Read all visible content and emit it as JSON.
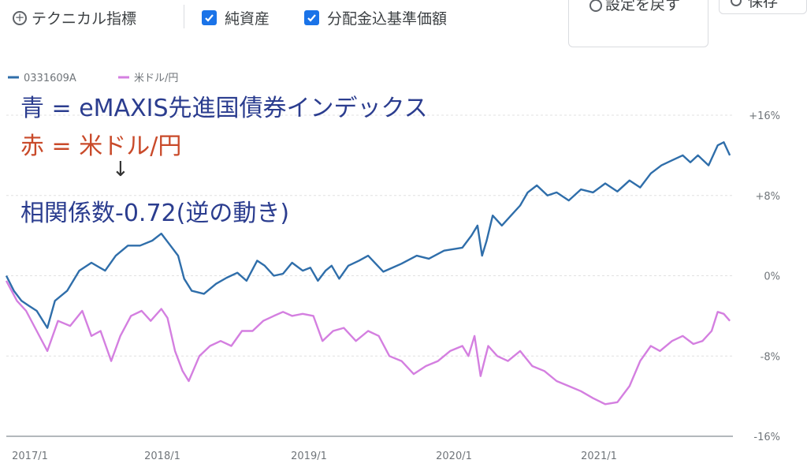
{
  "toolbar": {
    "technical_label": "テクニカル指標",
    "checkbox1_label": "純資産",
    "checkbox2_label": "分配金込基準価額",
    "reset_button_label": "設定を戻す",
    "save_button_label": "保存"
  },
  "annotations": {
    "line1": "青 = eMAXIS先進国債券インデックス",
    "line2": "赤 = 米ドル/円",
    "arrow": "↓",
    "line3": "相関係数-0.72(逆の動き)"
  },
  "colors": {
    "series1": "#2f6eaa",
    "series2": "#d47fe0",
    "annot_blue": "#2b3d8f",
    "annot_red": "#c94a2a",
    "checkbox": "#1a73e8"
  },
  "chart_data": {
    "type": "line",
    "x_labels": [
      "2017/1",
      "2018/1",
      "2019/1",
      "2020/1",
      "2021/1"
    ],
    "y_ticks": [
      "+16%",
      "+8%",
      "0%",
      "-8%",
      "-16%"
    ],
    "ylim": [
      -16,
      16
    ],
    "grid": true,
    "legend_placement": "top-left",
    "series": [
      {
        "name": "0331609A",
        "points": [
          [
            2017.0,
            0.0
          ],
          [
            2017.05,
            -1.5
          ],
          [
            2017.1,
            -2.5
          ],
          [
            2017.15,
            -3.0
          ],
          [
            2017.2,
            -3.5
          ],
          [
            2017.27,
            -5.2
          ],
          [
            2017.32,
            -2.5
          ],
          [
            2017.4,
            -1.5
          ],
          [
            2017.48,
            0.5
          ],
          [
            2017.56,
            1.3
          ],
          [
            2017.65,
            0.5
          ],
          [
            2017.72,
            2.0
          ],
          [
            2017.8,
            3.0
          ],
          [
            2017.88,
            3.0
          ],
          [
            2017.96,
            3.5
          ],
          [
            2018.02,
            4.2
          ],
          [
            2018.08,
            3.0
          ],
          [
            2018.13,
            2.0
          ],
          [
            2018.17,
            -0.3
          ],
          [
            2018.22,
            -1.5
          ],
          [
            2018.3,
            -1.8
          ],
          [
            2018.38,
            -0.8
          ],
          [
            2018.45,
            -0.2
          ],
          [
            2018.52,
            0.3
          ],
          [
            2018.58,
            -0.5
          ],
          [
            2018.65,
            1.5
          ],
          [
            2018.7,
            1.0
          ],
          [
            2018.76,
            0.0
          ],
          [
            2018.82,
            0.2
          ],
          [
            2018.88,
            1.3
          ],
          [
            2018.95,
            0.5
          ],
          [
            2019.0,
            0.8
          ],
          [
            2019.05,
            -0.5
          ],
          [
            2019.1,
            0.5
          ],
          [
            2019.14,
            1.0
          ],
          [
            2019.19,
            -0.3
          ],
          [
            2019.25,
            1.0
          ],
          [
            2019.32,
            1.5
          ],
          [
            2019.38,
            2.0
          ],
          [
            2019.48,
            0.4
          ],
          [
            2019.6,
            1.2
          ],
          [
            2019.7,
            2.0
          ],
          [
            2019.78,
            1.7
          ],
          [
            2019.88,
            2.5
          ],
          [
            2020.0,
            2.8
          ],
          [
            2020.06,
            4.0
          ],
          [
            2020.1,
            5.0
          ],
          [
            2020.13,
            2.0
          ],
          [
            2020.16,
            3.5
          ],
          [
            2020.2,
            6.0
          ],
          [
            2020.26,
            5.0
          ],
          [
            2020.32,
            6.0
          ],
          [
            2020.38,
            7.0
          ],
          [
            2020.43,
            8.3
          ],
          [
            2020.49,
            9.0
          ],
          [
            2020.56,
            8.0
          ],
          [
            2020.62,
            8.3
          ],
          [
            2020.7,
            7.5
          ],
          [
            2020.78,
            8.6
          ],
          [
            2020.86,
            8.3
          ],
          [
            2020.94,
            9.2
          ],
          [
            2021.02,
            8.4
          ],
          [
            2021.1,
            9.5
          ],
          [
            2021.17,
            8.8
          ],
          [
            2021.24,
            10.2
          ],
          [
            2021.31,
            11.0
          ],
          [
            2021.38,
            11.5
          ],
          [
            2021.45,
            12.0
          ],
          [
            2021.5,
            11.3
          ],
          [
            2021.55,
            12.0
          ],
          [
            2021.62,
            11.0
          ],
          [
            2021.68,
            13.0
          ],
          [
            2021.72,
            13.3
          ],
          [
            2021.76,
            12.0
          ]
        ]
      },
      {
        "name": "米ドル/円",
        "points": [
          [
            2017.0,
            -0.5
          ],
          [
            2017.07,
            -2.5
          ],
          [
            2017.13,
            -3.5
          ],
          [
            2017.2,
            -5.5
          ],
          [
            2017.27,
            -7.5
          ],
          [
            2017.34,
            -4.5
          ],
          [
            2017.42,
            -5.0
          ],
          [
            2017.5,
            -3.5
          ],
          [
            2017.56,
            -6.0
          ],
          [
            2017.62,
            -5.5
          ],
          [
            2017.69,
            -8.5
          ],
          [
            2017.75,
            -6.0
          ],
          [
            2017.82,
            -4.0
          ],
          [
            2017.89,
            -3.5
          ],
          [
            2017.95,
            -4.5
          ],
          [
            2018.02,
            -3.3
          ],
          [
            2018.06,
            -4.2
          ],
          [
            2018.11,
            -7.5
          ],
          [
            2018.16,
            -9.5
          ],
          [
            2018.2,
            -10.5
          ],
          [
            2018.27,
            -8.0
          ],
          [
            2018.34,
            -7.0
          ],
          [
            2018.41,
            -6.5
          ],
          [
            2018.48,
            -7.0
          ],
          [
            2018.55,
            -5.5
          ],
          [
            2018.62,
            -5.5
          ],
          [
            2018.69,
            -4.5
          ],
          [
            2018.76,
            -4.0
          ],
          [
            2018.82,
            -3.6
          ],
          [
            2018.88,
            -4.0
          ],
          [
            2018.95,
            -3.8
          ],
          [
            2019.02,
            -4.0
          ],
          [
            2019.08,
            -6.5
          ],
          [
            2019.15,
            -5.5
          ],
          [
            2019.22,
            -5.2
          ],
          [
            2019.3,
            -6.5
          ],
          [
            2019.38,
            -5.5
          ],
          [
            2019.45,
            -6.0
          ],
          [
            2019.52,
            -8.0
          ],
          [
            2019.6,
            -8.5
          ],
          [
            2019.68,
            -9.8
          ],
          [
            2019.76,
            -9.0
          ],
          [
            2019.84,
            -8.5
          ],
          [
            2019.92,
            -7.5
          ],
          [
            2020.0,
            -7.0
          ],
          [
            2020.04,
            -8.0
          ],
          [
            2020.08,
            -6.0
          ],
          [
            2020.12,
            -10.0
          ],
          [
            2020.17,
            -7.0
          ],
          [
            2020.23,
            -8.0
          ],
          [
            2020.3,
            -8.5
          ],
          [
            2020.38,
            -7.5
          ],
          [
            2020.46,
            -9.0
          ],
          [
            2020.54,
            -9.5
          ],
          [
            2020.62,
            -10.5
          ],
          [
            2020.7,
            -11.0
          ],
          [
            2020.78,
            -11.5
          ],
          [
            2020.86,
            -12.2
          ],
          [
            2020.94,
            -12.8
          ],
          [
            2021.02,
            -12.6
          ],
          [
            2021.1,
            -11.0
          ],
          [
            2021.17,
            -8.5
          ],
          [
            2021.24,
            -7.0
          ],
          [
            2021.3,
            -7.5
          ],
          [
            2021.38,
            -6.5
          ],
          [
            2021.45,
            -6.0
          ],
          [
            2021.52,
            -6.8
          ],
          [
            2021.58,
            -6.5
          ],
          [
            2021.64,
            -5.5
          ],
          [
            2021.68,
            -3.6
          ],
          [
            2021.72,
            -3.8
          ],
          [
            2021.76,
            -4.5
          ]
        ]
      }
    ]
  }
}
